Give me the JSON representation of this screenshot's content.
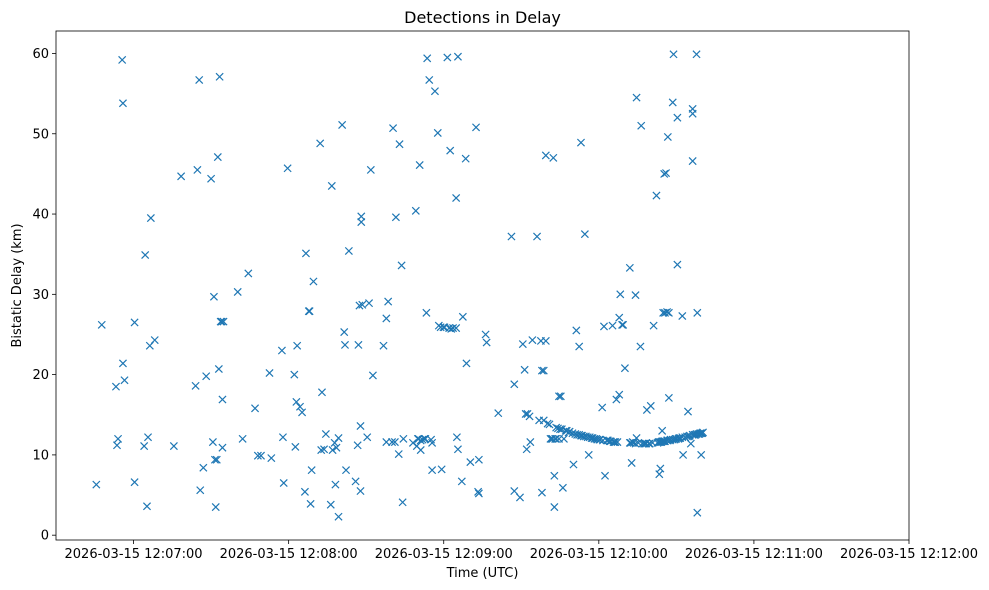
{
  "chart_data": {
    "type": "scatter",
    "title": "Detections in Delay",
    "xlabel": "Time (UTC)",
    "ylabel": "Bistatic Delay (km)",
    "marker": "x",
    "color": "#1f77b4",
    "grid": false,
    "xlim_seconds_from_12_06_30": [
      0,
      330
    ],
    "ylim": [
      -0.6,
      62.8
    ],
    "xticks": [
      {
        "t": 30,
        "label": "2026-03-15 12:07:00"
      },
      {
        "t": 90,
        "label": "2026-03-15 12:08:00"
      },
      {
        "t": 150,
        "label": "2026-03-15 12:09:00"
      },
      {
        "t": 210,
        "label": "2026-03-15 12:10:00"
      },
      {
        "t": 270,
        "label": "2026-03-15 12:11:00"
      },
      {
        "t": 330,
        "label": "2026-03-15 12:12:00"
      }
    ],
    "yticks": [
      0,
      10,
      20,
      30,
      40,
      50,
      60
    ],
    "x_unit": "seconds after 2026-03-15 12:06:30 UTC",
    "points": [
      [
        15.6,
        6.3
      ],
      [
        17.7,
        26.2
      ],
      [
        23.2,
        18.5
      ],
      [
        23.6,
        11.2
      ],
      [
        24.0,
        12.0
      ],
      [
        25.9,
        21.4
      ],
      [
        26.5,
        19.3
      ],
      [
        25.6,
        59.2
      ],
      [
        25.9,
        53.8
      ],
      [
        30.4,
        26.5
      ],
      [
        30.4,
        6.6
      ],
      [
        34.1,
        11.1
      ],
      [
        34.5,
        34.9
      ],
      [
        35.2,
        3.6
      ],
      [
        35.6,
        12.2
      ],
      [
        36.3,
        23.6
      ],
      [
        36.7,
        39.5
      ],
      [
        38.2,
        24.3
      ],
      [
        45.6,
        11.1
      ],
      [
        48.4,
        44.7
      ],
      [
        54.0,
        18.6
      ],
      [
        54.7,
        45.5
      ],
      [
        55.4,
        56.7
      ],
      [
        55.8,
        5.6
      ],
      [
        57.0,
        8.4
      ],
      [
        58.1,
        19.8
      ],
      [
        60.0,
        44.4
      ],
      [
        60.7,
        11.6
      ],
      [
        61.1,
        29.7
      ],
      [
        61.5,
        9.4
      ],
      [
        61.8,
        3.5
      ],
      [
        62.2,
        9.4
      ],
      [
        62.6,
        47.1
      ],
      [
        63.0,
        20.7
      ],
      [
        63.3,
        57.1
      ],
      [
        63.7,
        26.6
      ],
      [
        64.1,
        26.6
      ],
      [
        64.4,
        16.9
      ],
      [
        64.8,
        26.6
      ],
      [
        64.4,
        10.9
      ],
      [
        70.3,
        30.3
      ],
      [
        72.2,
        12.0
      ],
      [
        74.4,
        32.6
      ],
      [
        77.0,
        15.8
      ],
      [
        78.1,
        9.9
      ],
      [
        79.3,
        9.9
      ],
      [
        82.6,
        20.2
      ],
      [
        83.3,
        9.6
      ],
      [
        87.8,
        12.2
      ],
      [
        87.4,
        23.0
      ],
      [
        88.1,
        6.5
      ],
      [
        89.6,
        45.7
      ],
      [
        92.2,
        20.0
      ],
      [
        92.6,
        11.0
      ],
      [
        93.0,
        16.6
      ],
      [
        93.3,
        23.6
      ],
      [
        94.4,
        16.0
      ],
      [
        95.2,
        15.3
      ],
      [
        96.3,
        5.4
      ],
      [
        96.7,
        35.1
      ],
      [
        97.8,
        27.9
      ],
      [
        98.1,
        27.9
      ],
      [
        98.5,
        3.9
      ],
      [
        98.9,
        8.1
      ],
      [
        99.6,
        31.6
      ],
      [
        102.2,
        48.8
      ],
      [
        102.6,
        10.6
      ],
      [
        102.9,
        17.8
      ],
      [
        103.7,
        10.7
      ],
      [
        104.4,
        12.6
      ],
      [
        106.3,
        3.8
      ],
      [
        106.7,
        43.5
      ],
      [
        107.0,
        10.6
      ],
      [
        107.8,
        11.5
      ],
      [
        108.1,
        6.3
      ],
      [
        108.5,
        10.9
      ],
      [
        109.3,
        2.3
      ],
      [
        109.3,
        12.1
      ],
      [
        110.7,
        51.1
      ],
      [
        111.5,
        25.3
      ],
      [
        111.8,
        23.7
      ],
      [
        112.2,
        8.1
      ],
      [
        113.3,
        35.4
      ],
      [
        115.9,
        6.7
      ],
      [
        116.7,
        11.2
      ],
      [
        117.0,
        23.7
      ],
      [
        117.4,
        28.6
      ],
      [
        117.8,
        13.6
      ],
      [
        117.8,
        5.5
      ],
      [
        118.1,
        39.7
      ],
      [
        118.1,
        39.0
      ],
      [
        118.5,
        28.7
      ],
      [
        120.4,
        12.2
      ],
      [
        121.1,
        28.9
      ],
      [
        121.8,
        45.5
      ],
      [
        122.6,
        19.9
      ],
      [
        126.7,
        23.6
      ],
      [
        127.8,
        27.0
      ],
      [
        127.8,
        11.6
      ],
      [
        128.5,
        29.1
      ],
      [
        130.0,
        11.6
      ],
      [
        130.4,
        50.7
      ],
      [
        131.1,
        11.6
      ],
      [
        131.5,
        39.6
      ],
      [
        132.6,
        10.1
      ],
      [
        132.9,
        48.7
      ],
      [
        133.7,
        33.6
      ],
      [
        134.1,
        4.1
      ],
      [
        134.4,
        12.0
      ],
      [
        138.1,
        11.5
      ],
      [
        139.2,
        40.4
      ],
      [
        139.6,
        11.1
      ],
      [
        140.0,
        12.0
      ],
      [
        140.3,
        12.0
      ],
      [
        140.7,
        46.1
      ],
      [
        141.1,
        11.8
      ],
      [
        141.1,
        10.6
      ],
      [
        141.8,
        11.9
      ],
      [
        142.5,
        12.0
      ],
      [
        142.9,
        12.0
      ],
      [
        143.3,
        27.7
      ],
      [
        143.6,
        59.4
      ],
      [
        144.4,
        56.7
      ],
      [
        145.1,
        11.9
      ],
      [
        145.5,
        11.5
      ],
      [
        145.5,
        8.1
      ],
      [
        146.6,
        55.3
      ],
      [
        147.7,
        50.1
      ],
      [
        148.1,
        26.1
      ],
      [
        148.8,
        25.9
      ],
      [
        149.2,
        8.2
      ],
      [
        149.9,
        25.9
      ],
      [
        150.3,
        25.9
      ],
      [
        151.4,
        59.5
      ],
      [
        152.1,
        25.8
      ],
      [
        152.5,
        47.9
      ],
      [
        152.9,
        25.7
      ],
      [
        153.6,
        25.8
      ],
      [
        154.8,
        25.8
      ],
      [
        154.8,
        42.0
      ],
      [
        155.1,
        12.2
      ],
      [
        155.5,
        59.6
      ],
      [
        155.5,
        10.7
      ],
      [
        157.0,
        6.7
      ],
      [
        157.4,
        27.2
      ],
      [
        158.5,
        46.9
      ],
      [
        158.8,
        21.4
      ],
      [
        160.3,
        9.1
      ],
      [
        162.5,
        50.8
      ],
      [
        163.3,
        5.4
      ],
      [
        163.6,
        9.4
      ],
      [
        163.6,
        5.2
      ],
      [
        166.2,
        25.0
      ],
      [
        166.6,
        24.0
      ],
      [
        171.1,
        15.2
      ],
      [
        176.2,
        37.2
      ],
      [
        177.3,
        18.8
      ],
      [
        177.3,
        5.5
      ],
      [
        179.5,
        4.7
      ],
      [
        180.6,
        23.8
      ],
      [
        181.3,
        20.6
      ],
      [
        181.7,
        15.1
      ],
      [
        182.1,
        10.7
      ],
      [
        182.4,
        15.1
      ],
      [
        183.2,
        14.8
      ],
      [
        183.5,
        11.6
      ],
      [
        184.3,
        24.3
      ],
      [
        186.1,
        37.2
      ],
      [
        186.9,
        14.3
      ],
      [
        187.6,
        24.2
      ],
      [
        188.0,
        5.3
      ],
      [
        188.0,
        20.5
      ],
      [
        189.5,
        24.2
      ],
      [
        188.7,
        20.5
      ],
      [
        188.7,
        14.3
      ],
      [
        189.5,
        47.3
      ],
      [
        190.2,
        13.9
      ],
      [
        190.9,
        13.8
      ],
      [
        191.3,
        12.0
      ],
      [
        191.7,
        12.0
      ],
      [
        192.1,
        12.0
      ],
      [
        192.4,
        47.0
      ],
      [
        192.8,
        7.4
      ],
      [
        192.8,
        3.5
      ],
      [
        193.1,
        12.0
      ],
      [
        193.5,
        12.0
      ],
      [
        193.5,
        13.4
      ],
      [
        194.2,
        13.3
      ],
      [
        194.6,
        12.0
      ],
      [
        195.0,
        13.2
      ],
      [
        194.6,
        17.3
      ],
      [
        195.3,
        17.3
      ],
      [
        195.7,
        13.2
      ],
      [
        196.1,
        5.9
      ],
      [
        196.5,
        12.0
      ],
      [
        197.2,
        13.0
      ],
      [
        197.6,
        13.0
      ],
      [
        198.3,
        12.8
      ],
      [
        198.7,
        12.9
      ],
      [
        199.8,
        12.7
      ],
      [
        200.2,
        8.8
      ],
      [
        200.9,
        12.6
      ],
      [
        201.3,
        25.5
      ],
      [
        201.6,
        12.5
      ],
      [
        202.4,
        23.5
      ],
      [
        202.4,
        12.5
      ],
      [
        203.1,
        12.4
      ],
      [
        203.1,
        48.9
      ],
      [
        203.5,
        12.4
      ],
      [
        204.2,
        12.3
      ],
      [
        204.6,
        37.5
      ],
      [
        205.0,
        12.3
      ],
      [
        205.7,
        12.2
      ],
      [
        206.1,
        10.0
      ],
      [
        206.5,
        12.2
      ],
      [
        207.2,
        12.1
      ],
      [
        207.6,
        12.1
      ],
      [
        208.3,
        12.0
      ],
      [
        209.0,
        12.0
      ],
      [
        209.4,
        11.9
      ],
      [
        210.2,
        11.9
      ],
      [
        210.5,
        11.9
      ],
      [
        211.3,
        15.9
      ],
      [
        211.6,
        11.8
      ],
      [
        212.0,
        26.0
      ],
      [
        212.4,
        7.4
      ],
      [
        213.1,
        11.8
      ],
      [
        213.5,
        11.8
      ],
      [
        214.2,
        11.7
      ],
      [
        214.6,
        11.7
      ],
      [
        215.3,
        26.1
      ],
      [
        215.7,
        11.6
      ],
      [
        216.1,
        11.6
      ],
      [
        216.4,
        11.6
      ],
      [
        216.8,
        16.9
      ],
      [
        217.2,
        11.6
      ],
      [
        217.9,
        17.5
      ],
      [
        217.9,
        27.1
      ],
      [
        218.3,
        30.0
      ],
      [
        219.0,
        26.2
      ],
      [
        219.4,
        26.2
      ],
      [
        220.1,
        20.8
      ],
      [
        222.0,
        11.5
      ],
      [
        222.0,
        33.3
      ],
      [
        222.4,
        11.5
      ],
      [
        222.7,
        9.0
      ],
      [
        223.1,
        11.6
      ],
      [
        223.5,
        11.5
      ],
      [
        224.2,
        29.9
      ],
      [
        224.2,
        11.4
      ],
      [
        224.6,
        12.1
      ],
      [
        224.6,
        54.5
      ],
      [
        225.3,
        11.5
      ],
      [
        226.1,
        23.5
      ],
      [
        226.4,
        51.0
      ],
      [
        226.8,
        11.4
      ],
      [
        227.5,
        11.4
      ],
      [
        227.9,
        11.4
      ],
      [
        228.3,
        11.4
      ],
      [
        228.6,
        15.6
      ],
      [
        229.4,
        11.4
      ],
      [
        229.7,
        11.4
      ],
      [
        230.1,
        16.1
      ],
      [
        230.8,
        11.5
      ],
      [
        231.2,
        26.1
      ],
      [
        232.3,
        42.3
      ],
      [
        232.7,
        11.5
      ],
      [
        233.1,
        11.6
      ],
      [
        233.4,
        7.6
      ],
      [
        233.4,
        11.6
      ],
      [
        233.8,
        8.3
      ],
      [
        233.8,
        11.6
      ],
      [
        234.2,
        11.6
      ],
      [
        234.5,
        11.7
      ],
      [
        234.5,
        13.0
      ],
      [
        234.9,
        11.7
      ],
      [
        234.9,
        27.7
      ],
      [
        235.3,
        11.7
      ],
      [
        235.3,
        45.0
      ],
      [
        235.6,
        27.7
      ],
      [
        235.6,
        11.7
      ],
      [
        236.0,
        45.1
      ],
      [
        236.4,
        11.8
      ],
      [
        236.4,
        27.8
      ],
      [
        236.7,
        11.8
      ],
      [
        236.7,
        49.6
      ],
      [
        237.1,
        27.7
      ],
      [
        237.1,
        17.1
      ],
      [
        237.5,
        11.8
      ],
      [
        237.8,
        11.9
      ],
      [
        238.6,
        11.9
      ],
      [
        238.6,
        53.9
      ],
      [
        238.9,
        59.9
      ],
      [
        239.3,
        11.9
      ],
      [
        239.7,
        12.0
      ],
      [
        240.0,
        12.0
      ],
      [
        240.4,
        52.0
      ],
      [
        240.4,
        33.7
      ],
      [
        240.8,
        12.0
      ],
      [
        241.1,
        12.1
      ],
      [
        241.5,
        12.1
      ],
      [
        242.3,
        12.2
      ],
      [
        242.3,
        27.3
      ],
      [
        242.6,
        10.0
      ],
      [
        243.4,
        12.2
      ],
      [
        244.1,
        12.3
      ],
      [
        244.5,
        15.4
      ],
      [
        244.8,
        12.3
      ],
      [
        245.6,
        11.4
      ],
      [
        245.2,
        12.4
      ],
      [
        246.3,
        12.5
      ],
      [
        246.3,
        52.5
      ],
      [
        246.3,
        53.1
      ],
      [
        246.3,
        46.6
      ],
      [
        247.0,
        12.5
      ],
      [
        247.4,
        12.5
      ],
      [
        247.8,
        59.9
      ],
      [
        247.8,
        12.6
      ],
      [
        248.1,
        27.7
      ],
      [
        248.1,
        2.8
      ],
      [
        248.5,
        12.6
      ],
      [
        248.9,
        12.6
      ],
      [
        249.2,
        12.7
      ],
      [
        249.6,
        10.0
      ],
      [
        249.6,
        12.7
      ],
      [
        250.0,
        12.7
      ],
      [
        250.3,
        12.8
      ]
    ]
  }
}
